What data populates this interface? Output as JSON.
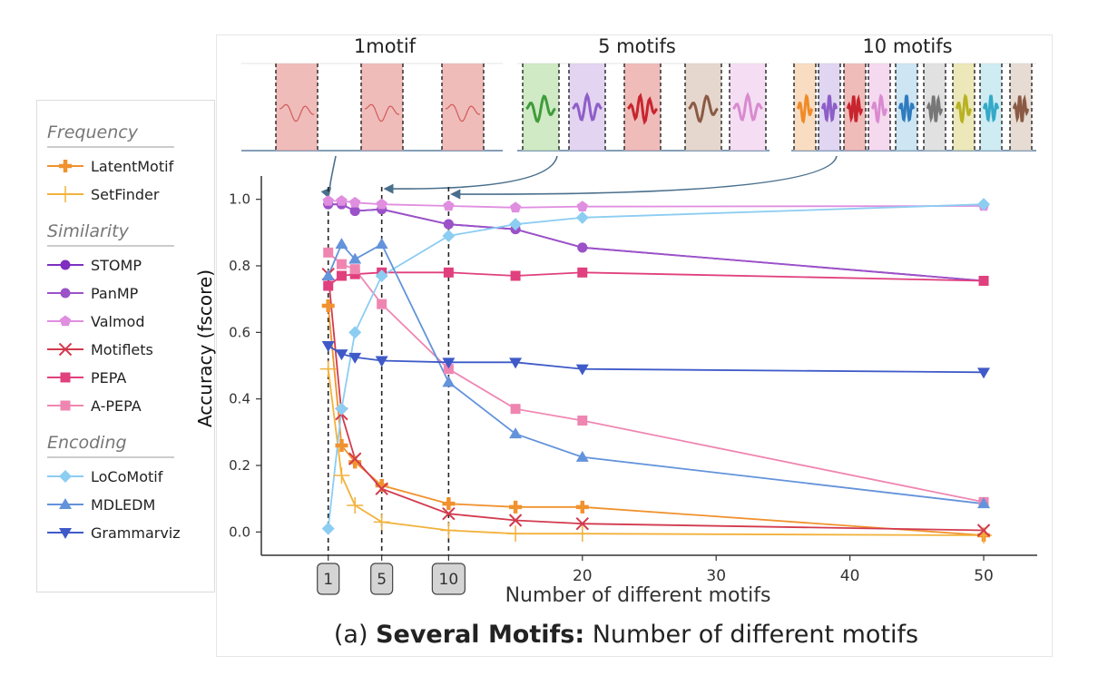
{
  "chart_data": {
    "type": "line",
    "caption_prefix": "(a) ",
    "caption_bold": "Several Motifs:",
    "caption_rest": " Number of different motifs",
    "xlabel": "Number of different motifs",
    "ylabel": "Accuracy (fscore)",
    "xlim": [
      -4,
      54
    ],
    "ylim": [
      -0.07,
      1.07
    ],
    "x_ticks": [
      1,
      5,
      10,
      20,
      30,
      40,
      50
    ],
    "x_tick_labels": [
      "1",
      "5",
      "10",
      "20",
      "30",
      "40",
      "50"
    ],
    "boxed_ticks": [
      1,
      5,
      10
    ],
    "y_ticks": [
      0.0,
      0.2,
      0.4,
      0.6,
      0.8,
      1.0
    ],
    "y_tick_labels": [
      "0.0",
      "0.2",
      "0.4",
      "0.6",
      "0.8",
      "1.0"
    ],
    "dashed_vlines": [
      1,
      5,
      10
    ],
    "grid": false,
    "legend_position": "left",
    "x": [
      1,
      2,
      3,
      5,
      10,
      15,
      20,
      50
    ],
    "legend_groups": [
      {
        "title": "Frequency",
        "items": [
          "LatentMotif",
          "SetFinder"
        ]
      },
      {
        "title": "Similarity",
        "items": [
          "STOMP",
          "PanMP",
          "Valmod",
          "Motiflets",
          "PEPA",
          "A-PEPA"
        ]
      },
      {
        "title": "Encoding",
        "items": [
          "LoCoMotif",
          "MDLEDM",
          "Grammarviz"
        ]
      }
    ],
    "series": [
      {
        "name": "LatentMotif",
        "color": "#f0922e",
        "marker": "plus-thick",
        "values": [
          0.68,
          0.26,
          0.21,
          0.14,
          0.085,
          0.075,
          0.075,
          -0.01
        ]
      },
      {
        "name": "SetFinder",
        "color": "#f2b23c",
        "marker": "plus-thin",
        "values": [
          0.49,
          0.17,
          0.08,
          0.03,
          0.005,
          -0.005,
          -0.005,
          -0.01
        ]
      },
      {
        "name": "STOMP",
        "color": "#7e2fc0",
        "marker": "circle",
        "values": [
          0.985,
          0.985,
          0.965,
          0.97,
          0.925,
          0.91,
          0.855,
          0.755
        ]
      },
      {
        "name": "PanMP",
        "color": "#9b52c8",
        "marker": "circle",
        "values": [
          0.985,
          0.985,
          0.965,
          0.97,
          0.925,
          0.91,
          0.855,
          0.755
        ]
      },
      {
        "name": "Valmod",
        "color": "#e08ee0",
        "marker": "pentagon",
        "values": [
          0.995,
          0.995,
          0.99,
          0.985,
          0.98,
          0.975,
          0.978,
          0.98
        ]
      },
      {
        "name": "Motiflets",
        "color": "#d23a4e",
        "marker": "x",
        "values": [
          0.775,
          0.355,
          0.22,
          0.13,
          0.055,
          0.035,
          0.025,
          0.005
        ]
      },
      {
        "name": "PEPA",
        "color": "#e0407e",
        "marker": "square",
        "values": [
          0.74,
          0.77,
          0.775,
          0.78,
          0.78,
          0.77,
          0.78,
          0.755
        ]
      },
      {
        "name": "A-PEPA",
        "color": "#ef86b2",
        "marker": "square",
        "values": [
          0.84,
          0.805,
          0.79,
          0.685,
          0.49,
          0.37,
          0.335,
          0.09
        ]
      },
      {
        "name": "LoCoMotif",
        "color": "#8ccdf2",
        "marker": "diamond",
        "values": [
          0.01,
          0.37,
          0.6,
          0.77,
          0.89,
          0.925,
          0.945,
          0.985
        ]
      },
      {
        "name": "MDLEDM",
        "color": "#6393db",
        "marker": "triangle-up",
        "values": [
          0.77,
          0.865,
          0.82,
          0.865,
          0.45,
          0.295,
          0.225,
          0.085
        ]
      },
      {
        "name": "Grammarviz",
        "color": "#3f5ac8",
        "marker": "triangle-down",
        "values": [
          0.56,
          0.535,
          0.525,
          0.515,
          0.51,
          0.51,
          0.49,
          0.48
        ]
      }
    ],
    "inset_panels": [
      {
        "label": "1motif",
        "colors": [
          "#e9a6a3",
          "#e9a6a3",
          "#e9a6a3"
        ],
        "wave_colors": [
          "#d25a5a",
          "#d25a5a",
          "#d25a5a"
        ]
      },
      {
        "label": "5 motifs",
        "colors": [
          "#bfe3b0",
          "#d9c6ec",
          "#e9a6a3",
          "#dccabd",
          "#f2d3ef"
        ],
        "wave_colors": [
          "#3f9b3b",
          "#8e5ec8",
          "#c8252f",
          "#8a5a44",
          "#d98ad0"
        ]
      },
      {
        "label": "10 motifs",
        "colors": [
          "#f6d2ad",
          "#d6c8ec",
          "#e9a6a3",
          "#f2cce9",
          "#bedcef",
          "#d7d7d7",
          "#e6e0a1",
          "#c0e6ef",
          "#dfd0c4"
        ],
        "wave_colors": [
          "#f08b28",
          "#8e5ec8",
          "#c8252f",
          "#d98ad0",
          "#2f7bbf",
          "#777777",
          "#b8b223",
          "#34aac8",
          "#8a5a44"
        ]
      }
    ]
  }
}
